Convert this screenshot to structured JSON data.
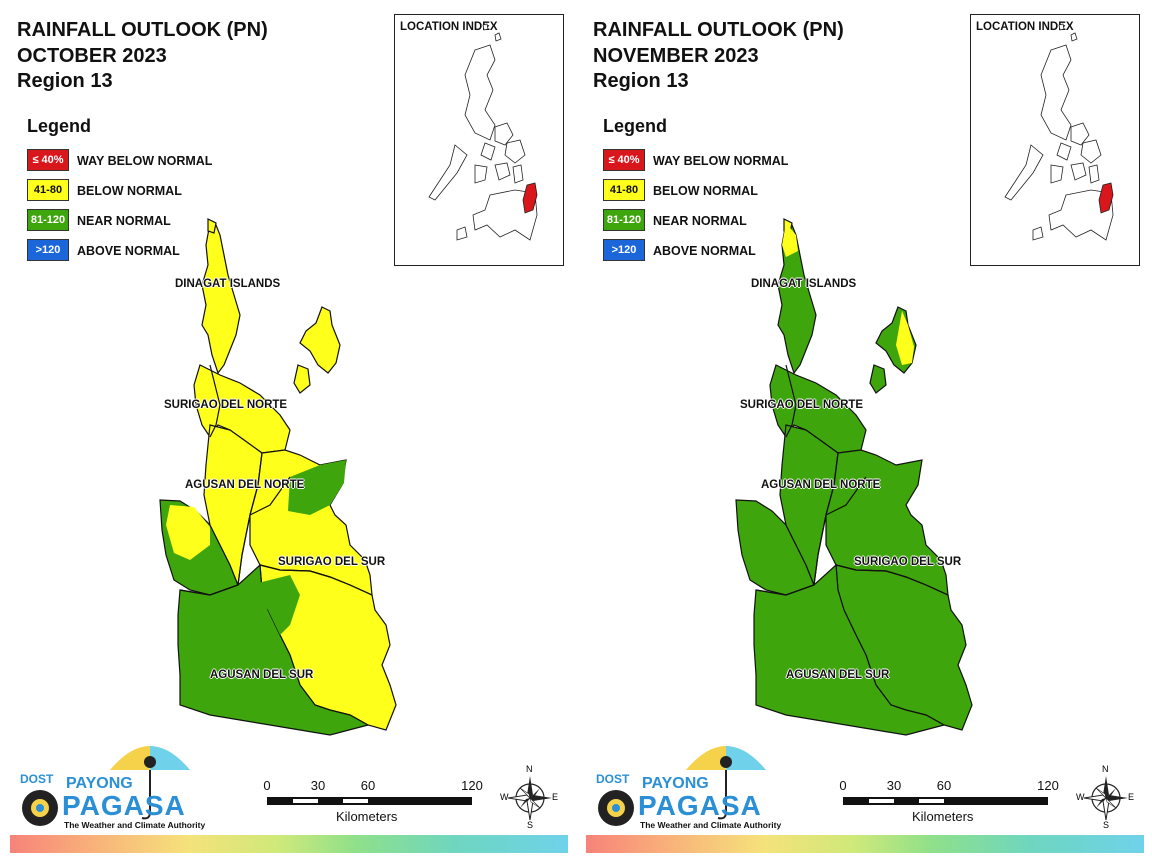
{
  "panels": [
    {
      "title": [
        "RAINFALL OUTLOOK (PN)",
        "OCTOBER 2023",
        "Region 13"
      ],
      "legend_title": "Legend",
      "legend": [
        {
          "range": "≤ 40%",
          "label": "WAY BELOW NORMAL",
          "color": "#d9161b",
          "text_color": "#ffffff"
        },
        {
          "range": "41-80",
          "label": "BELOW NORMAL",
          "color": "#ffff1c",
          "text_color": "#111111"
        },
        {
          "range": "81-120",
          "label": "NEAR NORMAL",
          "color": "#3ea50c",
          "text_color": "#ffffff"
        },
        {
          "range": ">120",
          "label": "ABOVE NORMAL",
          "color": "#1b66d9",
          "text_color": "#ffffff"
        }
      ],
      "inset_title": "LOCATION INDEX",
      "provinces": [
        "DINAGAT ISLANDS",
        "SURIGAO DEL NORTE",
        "AGUSAN DEL NORTE",
        "SURIGAO DEL SUR",
        "AGUSAN DEL SUR"
      ],
      "outlook": {
        "DINAGAT ISLANDS": "BELOW NORMAL",
        "SURIGAO DEL NORTE": "BELOW NORMAL",
        "AGUSAN DEL NORTE": "BELOW NORMAL / NEAR NORMAL",
        "SURIGAO DEL SUR": "BELOW NORMAL / NEAR NORMAL",
        "AGUSAN DEL SUR": "NEAR NORMAL / BELOW NORMAL"
      },
      "logo": {
        "dost": "DOST",
        "payong": "PAYONG",
        "pagasa": "PAGASA",
        "tagline": "The Weather and Climate Authority"
      },
      "scale": {
        "ticks": [
          "0",
          "30",
          "60",
          "120"
        ],
        "unit": "Kilometers"
      },
      "compass": {
        "n": "N",
        "s": "S",
        "e": "E",
        "w": "W"
      }
    },
    {
      "title": [
        "RAINFALL OUTLOOK (PN)",
        "NOVEMBER 2023",
        "Region 13"
      ],
      "legend_title": "Legend",
      "legend": [
        {
          "range": "≤ 40%",
          "label": "WAY BELOW NORMAL",
          "color": "#d9161b",
          "text_color": "#ffffff"
        },
        {
          "range": "41-80",
          "label": "BELOW NORMAL",
          "color": "#ffff1c",
          "text_color": "#111111"
        },
        {
          "range": "81-120",
          "label": "NEAR NORMAL",
          "color": "#3ea50c",
          "text_color": "#ffffff"
        },
        {
          "range": ">120",
          "label": "ABOVE NORMAL",
          "color": "#1b66d9",
          "text_color": "#ffffff"
        }
      ],
      "inset_title": "LOCATION INDEX",
      "provinces": [
        "DINAGAT ISLANDS",
        "SURIGAO DEL NORTE",
        "AGUSAN DEL NORTE",
        "SURIGAO DEL SUR",
        "AGUSAN DEL SUR"
      ],
      "outlook": {
        "DINAGAT ISLANDS": "NEAR NORMAL / BELOW NORMAL",
        "SURIGAO DEL NORTE": "NEAR NORMAL / BELOW NORMAL",
        "AGUSAN DEL NORTE": "NEAR NORMAL",
        "SURIGAO DEL SUR": "NEAR NORMAL",
        "AGUSAN DEL SUR": "NEAR NORMAL"
      },
      "logo": {
        "dost": "DOST",
        "payong": "PAYONG",
        "pagasa": "PAGASA",
        "tagline": "The Weather and Climate Authority"
      },
      "scale": {
        "ticks": [
          "0",
          "30",
          "60",
          "120"
        ],
        "unit": "Kilometers"
      },
      "compass": {
        "n": "N",
        "s": "S",
        "e": "E",
        "w": "W"
      }
    }
  ],
  "colors": {
    "below_normal": "#ffff1c",
    "near_normal": "#3ea50c",
    "highlight": "#d9161b",
    "outline": "#111111"
  }
}
